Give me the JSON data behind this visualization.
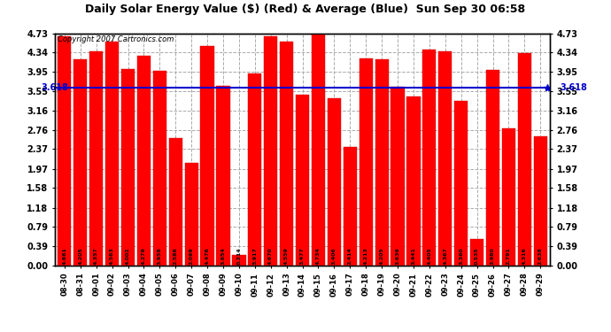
{
  "title": "Daily Solar Energy Value ($) (Red) & Average (Blue)  Sun Sep 30 06:58",
  "copyright": "Copyright 2007 Cartronics.com",
  "average": 3.618,
  "bar_color": "#FF0000",
  "avg_line_color": "#0000CC",
  "background_color": "#FFFFFF",
  "plot_bg_color": "#FFFFFF",
  "grid_color": "#AAAAAA",
  "categories": [
    "08-30",
    "08-31",
    "09-01",
    "09-02",
    "09-03",
    "09-04",
    "09-05",
    "09-06",
    "09-07",
    "09-08",
    "09-09",
    "09-10",
    "09-11",
    "09-12",
    "09-13",
    "09-14",
    "09-15",
    "09-16",
    "09-17",
    "09-18",
    "09-19",
    "09-20",
    "09-21",
    "09-22",
    "09-23",
    "09-24",
    "09-25",
    "09-26",
    "09-27",
    "09-28",
    "09-29"
  ],
  "values": [
    4.661,
    4.205,
    4.357,
    4.563,
    4.002,
    4.279,
    3.958,
    2.586,
    2.099,
    4.476,
    3.654,
    0.214,
    3.917,
    4.67,
    4.559,
    3.477,
    4.734,
    3.406,
    2.414,
    4.213,
    4.205,
    3.636,
    3.441,
    4.405,
    4.367,
    3.36,
    0.535,
    3.98,
    2.791,
    4.316,
    2.638
  ],
  "yticks": [
    0.0,
    0.39,
    0.79,
    1.18,
    1.58,
    1.97,
    2.37,
    2.76,
    3.16,
    3.55,
    3.95,
    4.34,
    4.73
  ],
  "ymax": 4.73,
  "ymin": 0.0
}
